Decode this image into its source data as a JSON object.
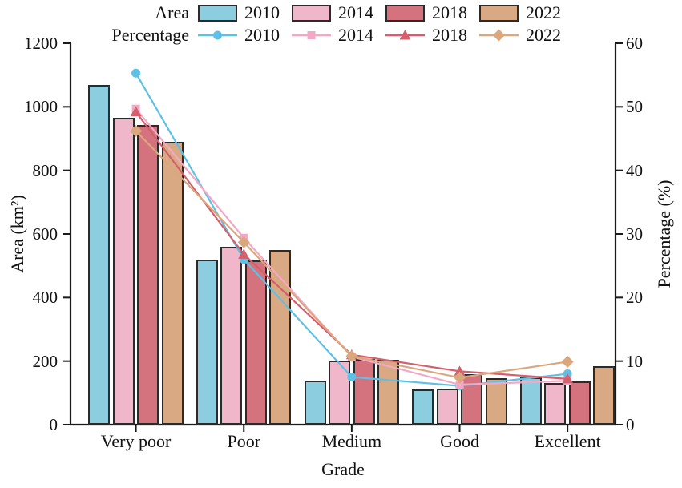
{
  "chart_data": {
    "type": "bar",
    "subtype": "grouped-bars-with-lines-dual-axis",
    "title": "",
    "categories": [
      "Very poor",
      "Poor",
      "Medium",
      "Good",
      "Excellent"
    ],
    "xlabel": "Grade",
    "ylabel_left": "Area (km²)",
    "ylabel_right": "Percentage (%)",
    "y_left_axis": {
      "min": 0,
      "max": 1200,
      "ticks": [
        0,
        200,
        400,
        600,
        800,
        1000,
        1200
      ]
    },
    "y_right_axis": {
      "min": 0,
      "max": 60,
      "ticks": [
        0,
        10,
        20,
        30,
        40,
        50,
        60
      ]
    },
    "grid": "off",
    "legend_position": "top",
    "legend": {
      "area_label": "Area",
      "percentage_label": "Percentage"
    },
    "axis_color": "#1a1a1a",
    "bar_series": [
      {
        "name": "2010",
        "color": "#8ccedf",
        "values": [
          1070,
          520,
          138,
          110,
          148
        ]
      },
      {
        "name": "2014",
        "color": "#f0b7cb",
        "values": [
          965,
          560,
          202,
          113,
          132
        ]
      },
      {
        "name": "2018",
        "color": "#d4737d",
        "values": [
          944,
          517,
          206,
          160,
          135
        ]
      },
      {
        "name": "2022",
        "color": "#d9a983",
        "values": [
          889,
          550,
          205,
          147,
          183
        ]
      }
    ],
    "line_series": [
      {
        "name": "2010",
        "color": "#5fc0e6",
        "marker": "circle",
        "values": [
          55.3,
          26.0,
          7.5,
          6.1,
          8.0
        ]
      },
      {
        "name": "2014",
        "color": "#f3a9c5",
        "marker": "square",
        "values": [
          49.7,
          29.4,
          10.7,
          6.3,
          6.9
        ]
      },
      {
        "name": "2018",
        "color": "#d55f6d",
        "marker": "triangle",
        "values": [
          49.2,
          26.8,
          11.0,
          8.4,
          7.2
        ]
      },
      {
        "name": "2022",
        "color": "#dba87e",
        "marker": "diamond",
        "values": [
          46.2,
          28.7,
          10.8,
          7.4,
          9.9
        ]
      }
    ]
  }
}
